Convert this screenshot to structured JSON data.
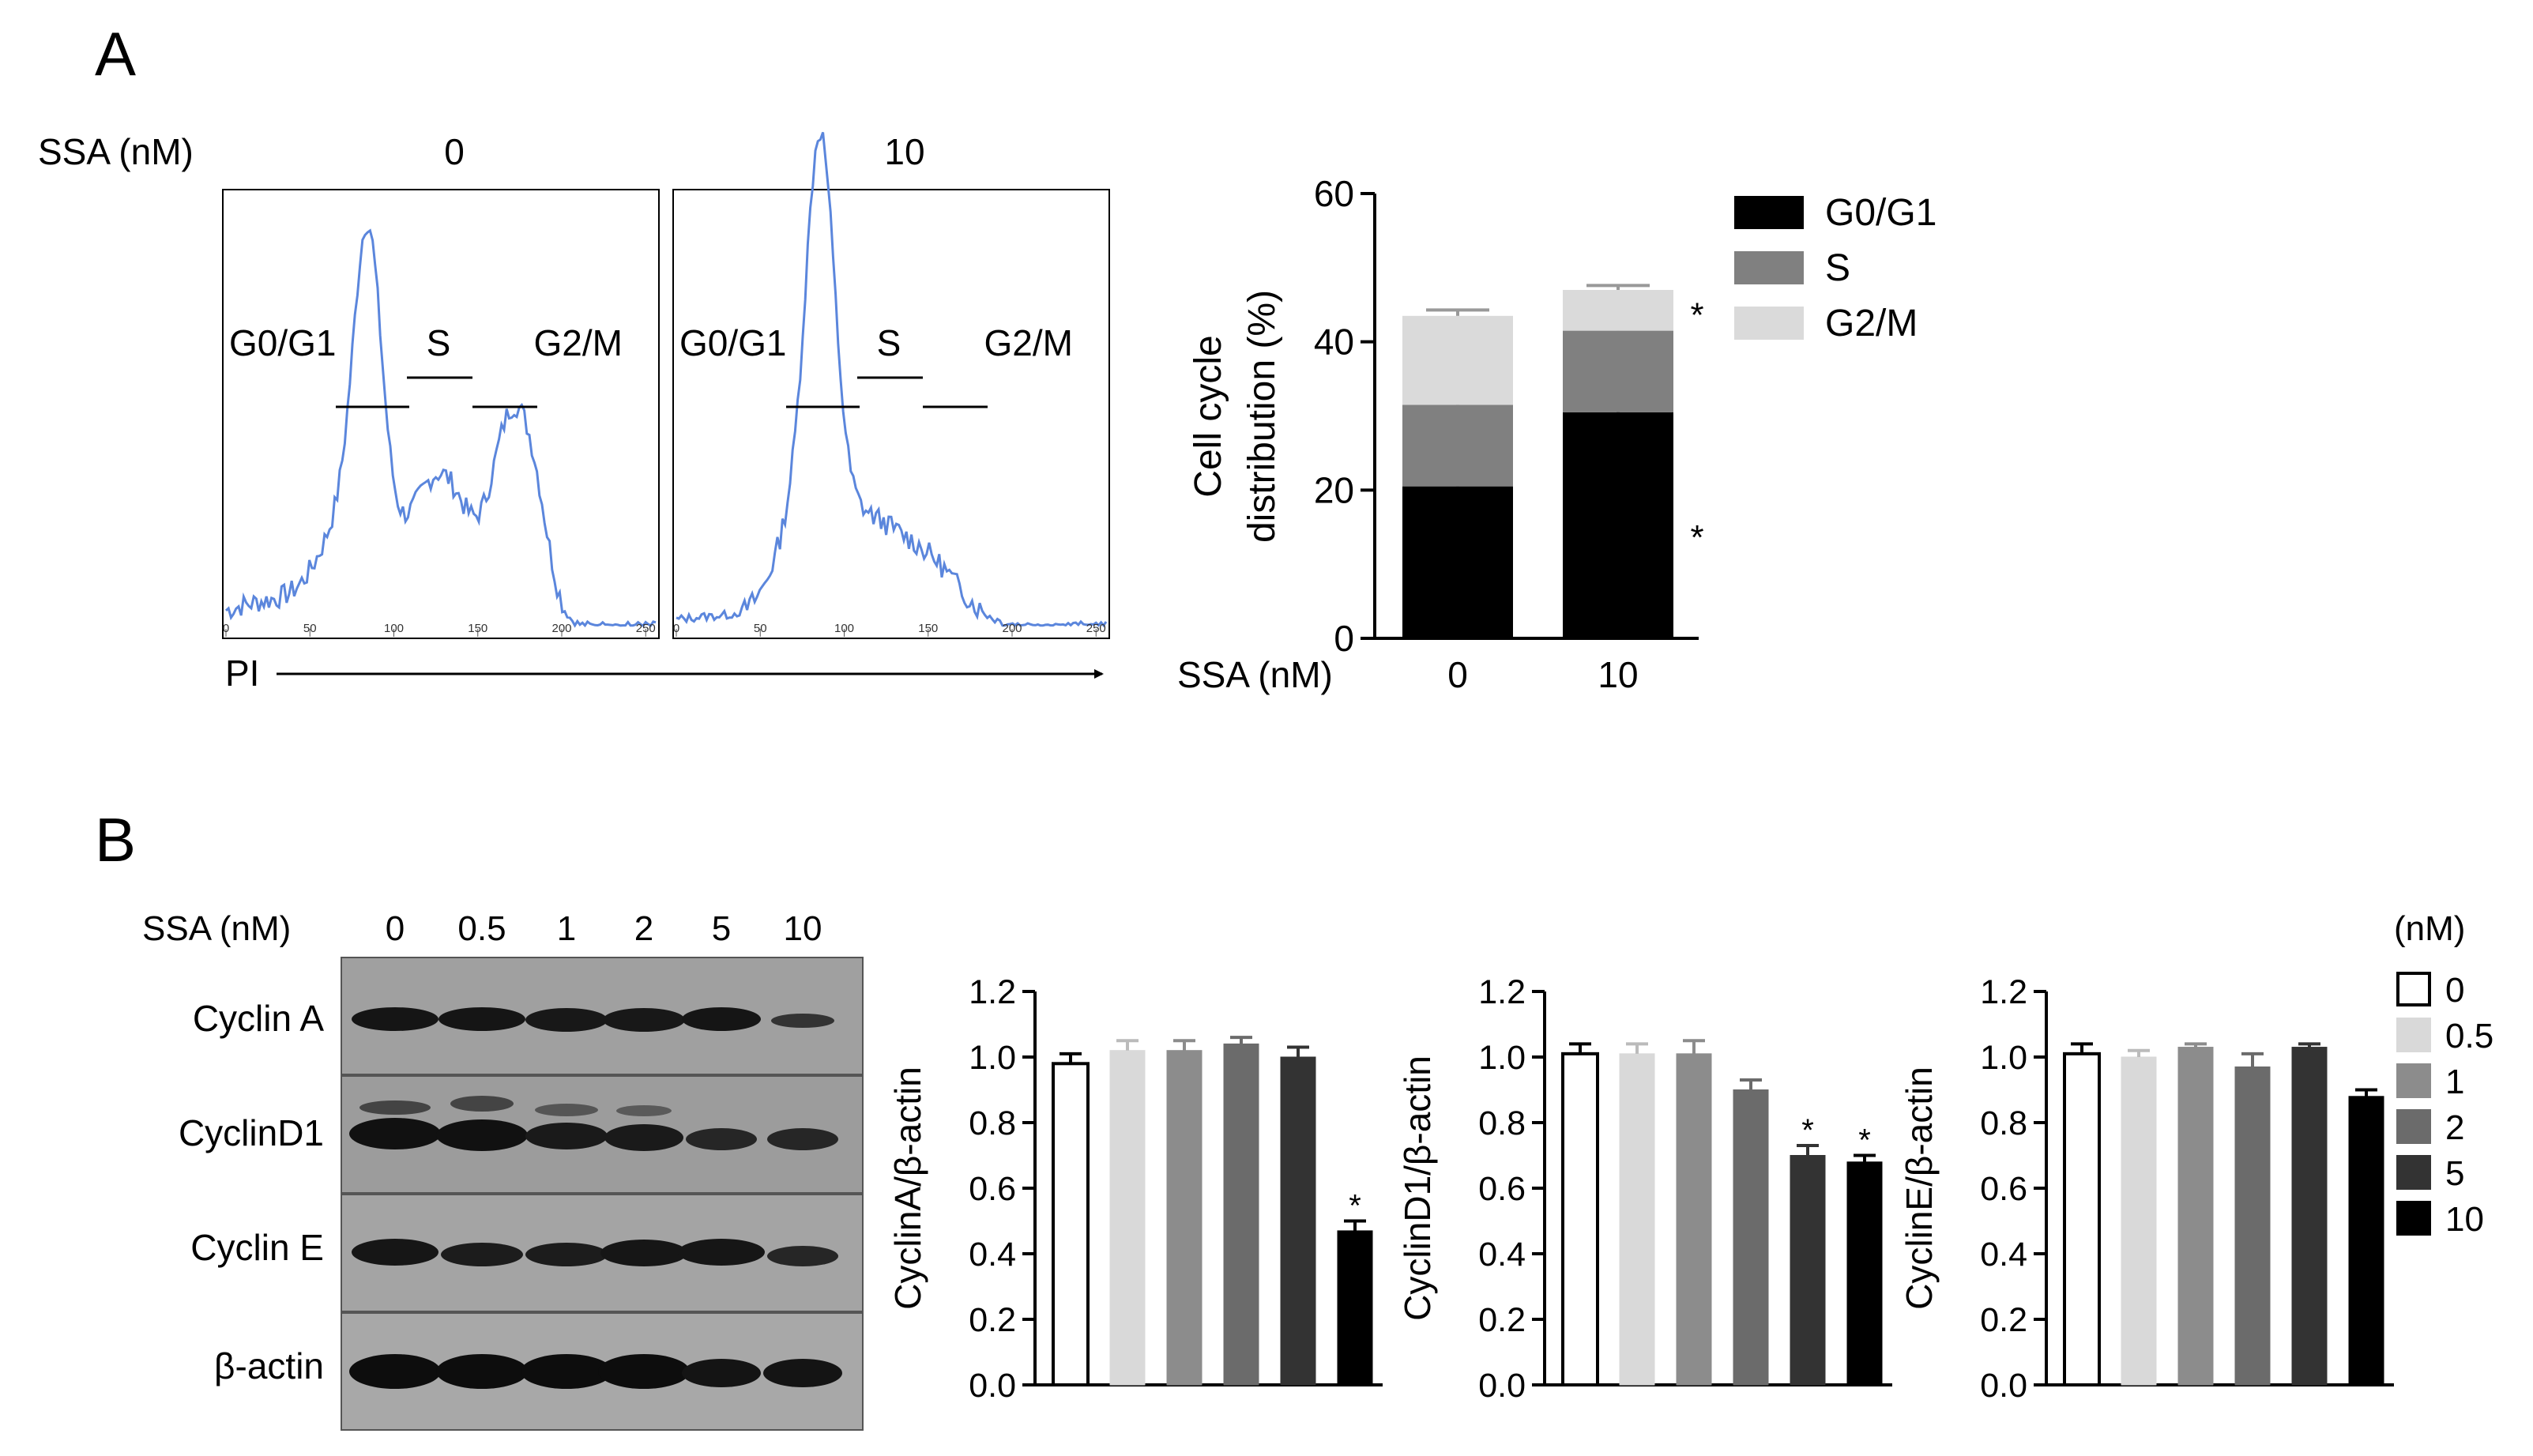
{
  "panel_a": {
    "label": "A",
    "ssa_label": "SSA (nM)",
    "x_axis_label": "PI",
    "histograms": [
      {
        "dose": "0",
        "gates": [
          "G0/G1",
          "S",
          "G2/M"
        ]
      },
      {
        "dose": "10",
        "gates": [
          "G0/G1",
          "S",
          "G2/M"
        ]
      }
    ],
    "axis_ticks": [
      "0",
      "50",
      "100",
      "150",
      "200",
      "250"
    ],
    "colors": {
      "trace": "#5b86dc",
      "gate": "#000000"
    }
  },
  "panel_b": {
    "label": "B",
    "ssa_label": "SSA (nM)",
    "doses": [
      "0",
      "0.5",
      "1",
      "2",
      "5",
      "10"
    ],
    "blots": [
      {
        "name": "Cyclin A"
      },
      {
        "name": "CyclinD1"
      },
      {
        "name": "Cyclin E"
      },
      {
        "name": "β-actin"
      }
    ],
    "legend_title": "(nM)",
    "legend": [
      "0",
      "0.5",
      "1",
      "2",
      "5",
      "10"
    ],
    "bar_colors": [
      "#ffffff",
      "#d9d9d9",
      "#8c8c8c",
      "#6b6b6b",
      "#333333",
      "#000000"
    ]
  },
  "chart_data": [
    {
      "type": "bar",
      "stacked": true,
      "title": "",
      "xlabel": "SSA (nM)",
      "ylabel": "Cell cycle distribution (%)",
      "ylabel_lines": [
        "Cell cycle",
        "distribution (%)"
      ],
      "categories": [
        "0",
        "10"
      ],
      "ylim": [
        0,
        60
      ],
      "yticks": [
        0,
        20,
        40,
        60
      ],
      "series": [
        {
          "name": "G0/G1",
          "color": "#000000",
          "values": [
            20.5,
            30.5
          ],
          "errors": [
            1.6,
            1.0
          ],
          "significance": [
            "",
            "*"
          ]
        },
        {
          "name": "S",
          "color": "#808080",
          "values": [
            11,
            11
          ],
          "errors": [
            0.5,
            0.5
          ],
          "significance": [
            "",
            ""
          ]
        },
        {
          "name": "G2/M",
          "color": "#dadada",
          "values": [
            12,
            5.5
          ],
          "errors": [
            0.8,
            0.6
          ],
          "significance": [
            "",
            "*"
          ]
        }
      ],
      "legend_position": "top-right"
    },
    {
      "type": "bar",
      "title": "",
      "xlabel": "",
      "ylabel": "CyclinA/β-actin",
      "categories": [
        "0",
        "0.5",
        "1",
        "2",
        "5",
        "10"
      ],
      "ylim": [
        0,
        1.2
      ],
      "yticks": [
        "0.0",
        "0.2",
        "0.4",
        "0.6",
        "0.8",
        "1.0",
        "1.2"
      ],
      "values": [
        0.98,
        1.02,
        1.02,
        1.04,
        1.0,
        0.47
      ],
      "errors": [
        0.03,
        0.03,
        0.03,
        0.02,
        0.03,
        0.03
      ],
      "significance": [
        "",
        "",
        "",
        "",
        "",
        "*"
      ]
    },
    {
      "type": "bar",
      "title": "",
      "xlabel": "",
      "ylabel": "CyclinD1/β-actin",
      "categories": [
        "0",
        "0.5",
        "1",
        "2",
        "5",
        "10"
      ],
      "ylim": [
        0,
        1.2
      ],
      "yticks": [
        "0.0",
        "0.2",
        "0.4",
        "0.6",
        "0.8",
        "1.0",
        "1.2"
      ],
      "values": [
        1.01,
        1.01,
        1.01,
        0.9,
        0.7,
        0.68
      ],
      "errors": [
        0.03,
        0.03,
        0.04,
        0.03,
        0.03,
        0.02
      ],
      "significance": [
        "",
        "",
        "",
        "",
        "*",
        "*"
      ]
    },
    {
      "type": "bar",
      "title": "",
      "xlabel": "",
      "ylabel": "CyclinE/β-actin",
      "categories": [
        "0",
        "0.5",
        "1",
        "2",
        "5",
        "10"
      ],
      "ylim": [
        0,
        1.2
      ],
      "yticks": [
        "0.0",
        "0.2",
        "0.4",
        "0.6",
        "0.8",
        "1.0",
        "1.2"
      ],
      "values": [
        1.01,
        1.0,
        1.03,
        0.97,
        1.03,
        0.88
      ],
      "errors": [
        0.03,
        0.02,
        0.01,
        0.04,
        0.01,
        0.02
      ],
      "significance": [
        "",
        "",
        "",
        "",
        "",
        ""
      ]
    }
  ]
}
